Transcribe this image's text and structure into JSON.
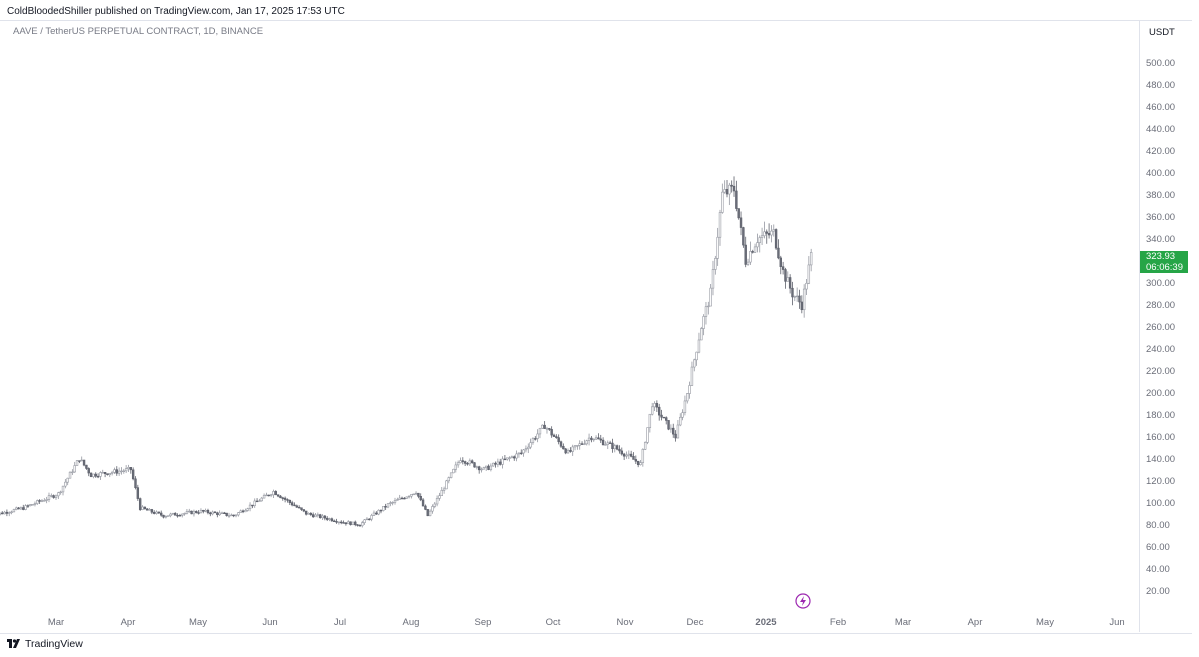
{
  "publisher_line": "ColdBloodedShiller published on TradingView.com, Jan 17, 2025 17:53 UTC",
  "symbol_line": "AAVE / TetherUS PERPETUAL CONTRACT, 1D, BINANCE",
  "currency": "USDT",
  "last_price": "323.93",
  "countdown": "06:06:39",
  "footer_brand": "TradingView",
  "colors": {
    "up": "#26a547",
    "down": "#787b86",
    "candle": "#6a6d78",
    "badge": "#26a547",
    "bolt": "#9c27b0"
  },
  "icons": {
    "logo": "tradingview-logo-icon",
    "bolt": "lightning-icon"
  },
  "chart_data": {
    "type": "line",
    "title": "",
    "xlabel": "",
    "ylabel": "",
    "ylim": [
      0,
      520
    ],
    "y_ticks": [
      "20.00",
      "40.00",
      "60.00",
      "80.00",
      "100.00",
      "120.00",
      "140.00",
      "160.00",
      "180.00",
      "200.00",
      "220.00",
      "240.00",
      "260.00",
      "280.00",
      "300.00",
      "320.00",
      "340.00",
      "360.00",
      "380.00",
      "400.00",
      "420.00",
      "440.00",
      "460.00",
      "480.00",
      "500.00"
    ],
    "x_ticks": [
      "Mar",
      "Apr",
      "May",
      "Jun",
      "Jul",
      "Aug",
      "Sep",
      "Oct",
      "Nov",
      "Dec",
      "2025",
      "Feb",
      "Mar",
      "Apr",
      "May",
      "Jun"
    ],
    "series": [
      {
        "values": [
          {
            "x": "2024-02-01",
            "y": 88
          },
          {
            "x": "2024-02-15",
            "y": 95
          },
          {
            "x": "2024-03-01",
            "y": 108
          },
          {
            "x": "2024-03-10",
            "y": 140
          },
          {
            "x": "2024-03-15",
            "y": 125
          },
          {
            "x": "2024-03-25",
            "y": 128
          },
          {
            "x": "2024-04-01",
            "y": 130
          },
          {
            "x": "2024-04-05",
            "y": 95
          },
          {
            "x": "2024-04-15",
            "y": 88
          },
          {
            "x": "2024-05-01",
            "y": 92
          },
          {
            "x": "2024-05-15",
            "y": 88
          },
          {
            "x": "2024-06-01",
            "y": 110
          },
          {
            "x": "2024-06-15",
            "y": 90
          },
          {
            "x": "2024-07-01",
            "y": 82
          },
          {
            "x": "2024-07-08",
            "y": 80
          },
          {
            "x": "2024-07-20",
            "y": 98
          },
          {
            "x": "2024-08-01",
            "y": 110
          },
          {
            "x": "2024-08-06",
            "y": 88
          },
          {
            "x": "2024-08-20",
            "y": 140
          },
          {
            "x": "2024-08-30",
            "y": 130
          },
          {
            "x": "2024-09-15",
            "y": 145
          },
          {
            "x": "2024-09-25",
            "y": 170
          },
          {
            "x": "2024-10-05",
            "y": 145
          },
          {
            "x": "2024-10-15",
            "y": 160
          },
          {
            "x": "2024-10-25",
            "y": 150
          },
          {
            "x": "2024-11-05",
            "y": 135
          },
          {
            "x": "2024-11-10",
            "y": 190
          },
          {
            "x": "2024-11-20",
            "y": 160
          },
          {
            "x": "2024-11-25",
            "y": 200
          },
          {
            "x": "2024-12-01",
            "y": 260
          },
          {
            "x": "2024-12-05",
            "y": 290
          },
          {
            "x": "2024-12-10",
            "y": 380
          },
          {
            "x": "2024-12-15",
            "y": 385
          },
          {
            "x": "2024-12-20",
            "y": 320
          },
          {
            "x": "2024-12-25",
            "y": 340
          },
          {
            "x": "2025-01-01",
            "y": 345
          },
          {
            "x": "2025-01-05",
            "y": 310
          },
          {
            "x": "2025-01-09",
            "y": 290
          },
          {
            "x": "2025-01-13",
            "y": 280
          },
          {
            "x": "2025-01-17",
            "y": 323.93
          }
        ]
      }
    ]
  }
}
